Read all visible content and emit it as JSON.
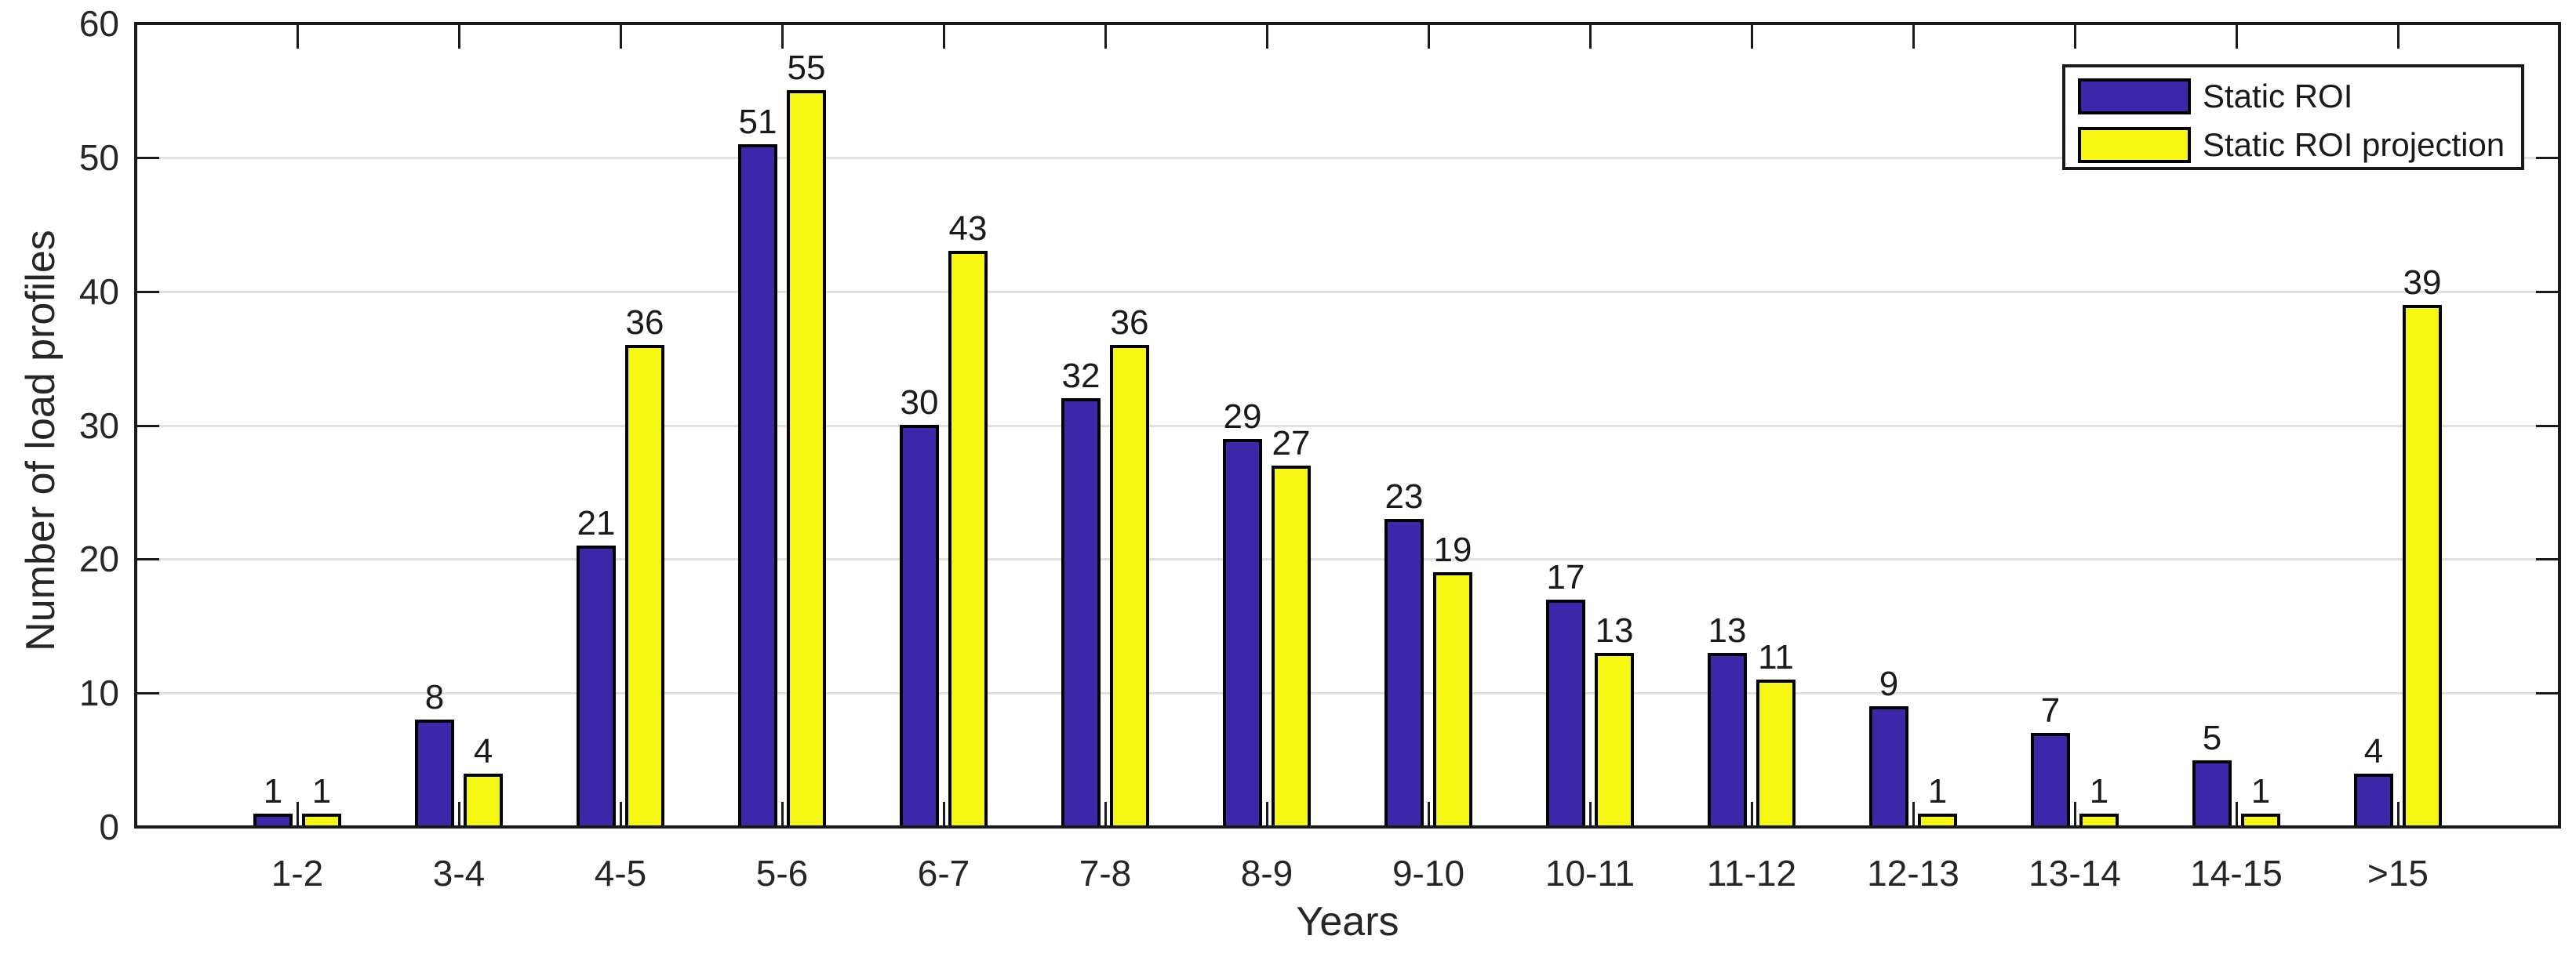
{
  "chart_data": {
    "type": "bar",
    "title": "",
    "xlabel": "Years",
    "ylabel": "Number of load profiles",
    "categories": [
      "1-2",
      "3-4",
      "4-5",
      "5-6",
      "6-7",
      "7-8",
      "8-9",
      "9-10",
      "10-11",
      "11-12",
      "12-13",
      "13-14",
      "14-15",
      ">15"
    ],
    "series": [
      {
        "name": "Static ROI",
        "color": "#3C28A8",
        "values": [
          1,
          8,
          21,
          51,
          30,
          32,
          29,
          23,
          17,
          13,
          9,
          7,
          5,
          4
        ]
      },
      {
        "name": "Static ROI projection",
        "color": "#F7F714",
        "values": [
          1,
          4,
          36,
          55,
          43,
          36,
          27,
          19,
          13,
          11,
          1,
          1,
          1,
          39
        ]
      }
    ],
    "ylim": [
      0,
      60
    ],
    "yticks": [
      0,
      10,
      20,
      30,
      40,
      50,
      60
    ],
    "bar_value_labels": true,
    "grid": "horizontal",
    "grid_color": "#E0E0E0",
    "axis_color": "#1A1A1A",
    "bar_edge_color": "#000000",
    "background": "#FFFFFF",
    "legend_position": "top-right"
  }
}
